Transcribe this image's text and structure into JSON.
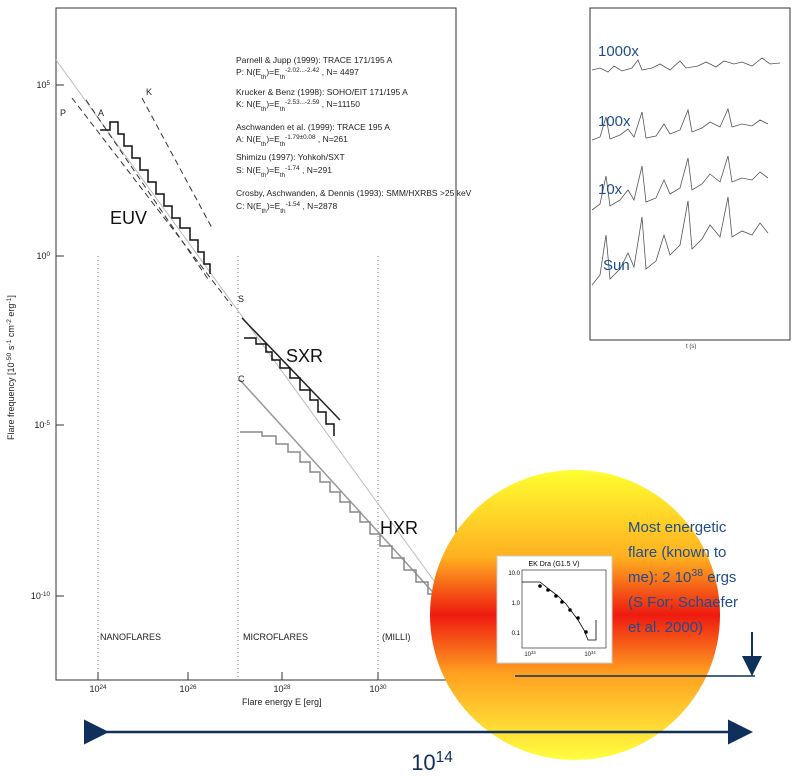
{
  "main_plot": {
    "y_label": [
      "Flare frequency [10",
      {
        "sup": "-50"
      },
      " s",
      {
        "sup": "-1"
      },
      " cm",
      {
        "sup": "-2"
      },
      " erg",
      {
        "sup": "-1"
      },
      "]"
    ],
    "x_label": "Flare energy  E [erg]",
    "y_ticks": [
      {
        "base": "10",
        "exp": "5"
      },
      {
        "base": "10",
        "exp": "0"
      },
      {
        "base": "10",
        "exp": "-5"
      },
      {
        "base": "10",
        "exp": "-10"
      }
    ],
    "x_ticks": [
      {
        "base": "10",
        "exp": "24"
      },
      {
        "base": "10",
        "exp": "26"
      },
      {
        "base": "10",
        "exp": "28"
      },
      {
        "base": "10",
        "exp": "30"
      }
    ],
    "regions": [
      "NANOFLARES",
      "MICROFLARES",
      "(MILLI)"
    ],
    "legend": [
      [
        "Parnell & Jupp (1999): TRACE 171/195 A"
      ],
      [
        "P: N(E",
        {
          "sub": "th"
        },
        ")=E",
        {
          "sub": "th"
        },
        {
          "sup": "-2.02...-2.42"
        },
        " , N= 4497"
      ],
      [
        "Krucker & Benz (1998): SOHO/EIT 171/195 A"
      ],
      [
        "K: N(E",
        {
          "sub": "th"
        },
        ")=E",
        {
          "sub": "th"
        },
        {
          "sup": "-2.53...-2.59"
        },
        " , N=11150"
      ],
      [
        "Aschwanden et al. (1999): TRACE 195 A"
      ],
      [
        "A: N(E",
        {
          "sub": "th"
        },
        ")=E",
        {
          "sub": "th"
        },
        {
          "sup": "-1.79±0.08"
        },
        " , N=261"
      ],
      [
        "Shimizu (1997): Yohkoh/SXT"
      ],
      [
        "S: N(E",
        {
          "sub": "th"
        },
        ")=E",
        {
          "sub": "th"
        },
        {
          "sup": "-1.74"
        },
        " , N=291"
      ],
      [
        "Crosby, Aschwanden, & Dennis (1993): SMM/HXRBS >25 keV"
      ],
      [
        "C: N(E",
        {
          "sub": "th"
        },
        ")=E",
        {
          "sub": "th"
        },
        {
          "sup": "-1.54"
        },
        " , N=2878"
      ]
    ],
    "curve_labels": {
      "P": "P",
      "A": "A",
      "K": "K",
      "S": "S",
      "C": "C"
    },
    "band_labels": {
      "EUV": "EUV",
      "SXR": "SXR",
      "HXR": "HXR"
    }
  },
  "inset": {
    "labels": [
      "1000x",
      "100x",
      "10x",
      "Sun"
    ],
    "x_label": "t (s)"
  },
  "ek_dra": {
    "title": "EK Dra (G1.5 V)",
    "y_ticks": [
      "10.0",
      "1.0",
      "0.1"
    ],
    "x_ticks": [
      {
        "base": "10",
        "exp": "33"
      },
      {
        "base": "10",
        "exp": "34"
      }
    ]
  },
  "note": [
    "Most energetic",
    "flare (known to",
    "me): 2 10",
    {
      "sup": "38"
    },
    " ergs",
    "(S For; Schaefer",
    "et al. 2000)"
  ],
  "span_label": {
    "base": "10",
    "exp": "14"
  }
}
